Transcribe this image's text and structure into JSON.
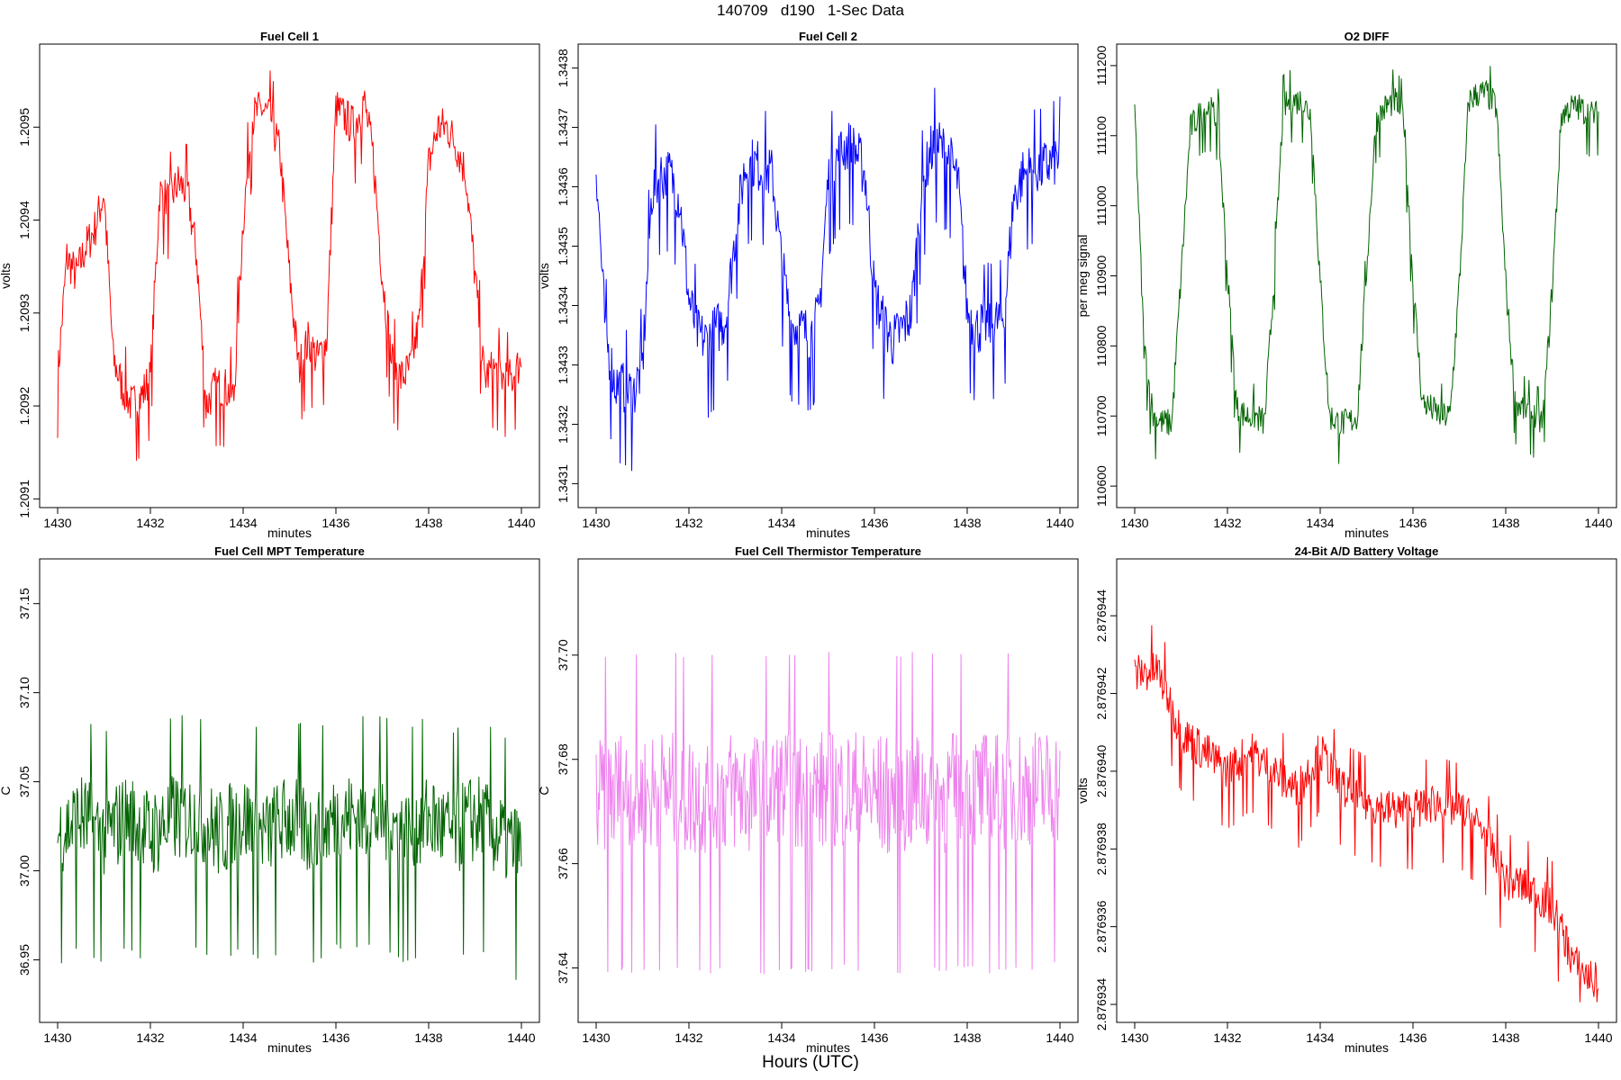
{
  "figure": {
    "suptitle": "140709   d190   1-Sec Data",
    "footer": "Hours (UTC)"
  },
  "chart_data": [
    {
      "type": "line",
      "title": "Fuel Cell 1",
      "xlabel": "minutes",
      "ylabel": "volts",
      "color": "#ff0000",
      "xlim": [
        1430,
        1440
      ],
      "ylim": [
        1.20911,
        1.20957
      ],
      "xticks": [
        1430,
        1432,
        1434,
        1436,
        1438,
        1440
      ],
      "yticks": [
        "1.2091",
        "1.2092",
        "1.2093",
        "1.2094",
        "1.2095"
      ],
      "ytick_values": [
        1.2091,
        1.2092,
        1.2093,
        1.2094,
        1.2095
      ],
      "series": [
        {
          "x": [
            1430.0,
            1430.2,
            1430.4,
            1430.6,
            1430.8,
            1431.0,
            1431.2,
            1431.4,
            1431.6,
            1431.8,
            1432.0,
            1432.2,
            1432.4,
            1432.6,
            1432.8,
            1433.0,
            1433.2,
            1433.4,
            1433.6,
            1433.8,
            1434.0,
            1434.2,
            1434.4,
            1434.6,
            1434.8,
            1435.0,
            1435.2,
            1435.4,
            1435.6,
            1435.8,
            1436.0,
            1436.2,
            1436.4,
            1436.6,
            1436.8,
            1437.0,
            1437.2,
            1437.4,
            1437.6,
            1437.8,
            1438.0,
            1438.2,
            1438.4,
            1438.6,
            1438.8,
            1439.0,
            1439.2,
            1439.4,
            1439.6,
            1439.8,
            1440.0
          ],
          "y": [
            1.20923,
            1.20936,
            1.20934,
            1.20937,
            1.20939,
            1.20943,
            1.20925,
            1.20922,
            1.2092,
            1.20921,
            1.20923,
            1.20943,
            1.20942,
            1.20944,
            1.20943,
            1.20936,
            1.2092,
            1.20922,
            1.20922,
            1.20921,
            1.2094,
            1.20951,
            1.20952,
            1.20951,
            1.20947,
            1.20934,
            1.20924,
            1.20927,
            1.20925,
            1.20927,
            1.20952,
            1.20951,
            1.2095,
            1.20953,
            1.20947,
            1.20934,
            1.20925,
            1.20923,
            1.20924,
            1.20929,
            1.20946,
            1.2095,
            1.2095,
            1.20948,
            1.20945,
            1.20934,
            1.20923,
            1.20924,
            1.20923,
            1.20923,
            1.20925
          ]
        }
      ]
    },
    {
      "type": "line",
      "title": "Fuel Cell 2",
      "xlabel": "minutes",
      "ylabel": "volts",
      "color": "#0000ff",
      "xlim": [
        1430,
        1440
      ],
      "ylim": [
        1.34309,
        1.34381
      ],
      "xticks": [
        1430,
        1432,
        1434,
        1436,
        1438,
        1440
      ],
      "yticks": [
        "1.3431",
        "1.3432",
        "1.3433",
        "1.3434",
        "1.3435",
        "1.3436",
        "1.3437",
        "1.3438"
      ],
      "ytick_values": [
        1.3431,
        1.3432,
        1.3433,
        1.3434,
        1.3435,
        1.3436,
        1.3437,
        1.3438
      ],
      "series": [
        {
          "x": [
            1430.0,
            1430.2,
            1430.4,
            1430.6,
            1430.8,
            1431.0,
            1431.2,
            1431.4,
            1431.6,
            1431.8,
            1432.0,
            1432.2,
            1432.4,
            1432.6,
            1432.8,
            1433.0,
            1433.2,
            1433.4,
            1433.6,
            1433.8,
            1434.0,
            1434.2,
            1434.4,
            1434.6,
            1434.8,
            1435.0,
            1435.2,
            1435.4,
            1435.6,
            1435.8,
            1436.0,
            1436.2,
            1436.4,
            1436.6,
            1436.8,
            1437.0,
            1437.2,
            1437.4,
            1437.6,
            1437.8,
            1438.0,
            1438.2,
            1438.4,
            1438.6,
            1438.8,
            1439.0,
            1439.2,
            1439.4,
            1439.6,
            1439.8,
            1440.0
          ],
          "y": [
            1.34364,
            1.34335,
            1.34327,
            1.34326,
            1.34325,
            1.3433,
            1.34359,
            1.34362,
            1.34362,
            1.34358,
            1.34341,
            1.34335,
            1.34334,
            1.34336,
            1.34338,
            1.34352,
            1.34363,
            1.34364,
            1.34363,
            1.34362,
            1.34347,
            1.34337,
            1.34336,
            1.34335,
            1.34338,
            1.34361,
            1.34365,
            1.34367,
            1.34366,
            1.34362,
            1.34342,
            1.34337,
            1.34334,
            1.34336,
            1.34339,
            1.34358,
            1.34366,
            1.34367,
            1.34365,
            1.34361,
            1.34339,
            1.34336,
            1.34337,
            1.34337,
            1.34338,
            1.34358,
            1.34362,
            1.34363,
            1.34363,
            1.34364,
            1.34365
          ]
        }
      ]
    },
    {
      "type": "line",
      "title": "O2 DIFF",
      "xlabel": "minutes",
      "ylabel": "per meg signal",
      "color": "#006400",
      "xlim": [
        1430,
        1440
      ],
      "ylim": [
        110595,
        111205
      ],
      "xticks": [
        1430,
        1432,
        1434,
        1436,
        1438,
        1440
      ],
      "yticks": [
        "110600",
        "110700",
        "110800",
        "110900",
        "111000",
        "111100",
        "111200"
      ],
      "ytick_values": [
        110600,
        110700,
        110800,
        110900,
        111000,
        111100,
        111200
      ],
      "series": [
        {
          "x": [
            1430.0,
            1430.2,
            1430.4,
            1430.6,
            1430.8,
            1431.0,
            1431.2,
            1431.4,
            1431.6,
            1431.8,
            1432.0,
            1432.2,
            1432.4,
            1432.6,
            1432.8,
            1433.0,
            1433.2,
            1433.4,
            1433.6,
            1433.8,
            1434.0,
            1434.2,
            1434.4,
            1434.6,
            1434.8,
            1435.0,
            1435.2,
            1435.4,
            1435.6,
            1435.8,
            1436.0,
            1436.2,
            1436.4,
            1436.6,
            1436.8,
            1437.0,
            1437.2,
            1437.4,
            1437.6,
            1437.8,
            1438.0,
            1438.2,
            1438.4,
            1438.6,
            1438.8,
            1439.0,
            1439.2,
            1439.4,
            1439.6,
            1439.8,
            1440.0
          ],
          "y": [
            111140,
            110800,
            110700,
            110690,
            110690,
            110900,
            111110,
            111130,
            111140,
            111120,
            110900,
            110710,
            110700,
            110700,
            110690,
            110890,
            111140,
            111150,
            111150,
            111130,
            110890,
            110700,
            110690,
            110690,
            110700,
            110910,
            111120,
            111140,
            111150,
            111130,
            110890,
            110720,
            110710,
            110700,
            110700,
            110890,
            111150,
            111160,
            111160,
            111140,
            110890,
            110720,
            110710,
            110700,
            110690,
            110880,
            111130,
            111140,
            111140,
            111130,
            111130
          ]
        }
      ]
    },
    {
      "type": "line",
      "title": "Fuel Cell MPT Temperature",
      "xlabel": "minutes",
      "ylabel": "C",
      "color": "#006400",
      "xlim": [
        1430,
        1440
      ],
      "ylim": [
        36.925,
        37.165
      ],
      "xticks": [
        1430,
        1432,
        1434,
        1436,
        1438,
        1440
      ],
      "yticks": [
        "36.95",
        "37.00",
        "37.05",
        "37.10",
        "37.15"
      ],
      "ytick_values": [
        36.95,
        37.0,
        37.05,
        37.1,
        37.15
      ],
      "series": [
        {
          "x": [
            1430.0,
            1430.5,
            1431.0,
            1431.5,
            1432.0,
            1432.5,
            1433.0,
            1433.5,
            1434.0,
            1434.5,
            1435.0,
            1435.5,
            1436.0,
            1436.5,
            1437.0,
            1437.5,
            1438.0,
            1438.5,
            1439.0,
            1439.5,
            1440.0
          ],
          "y": [
            37.02,
            37.03,
            37.02,
            37.03,
            37.02,
            37.03,
            37.03,
            37.02,
            37.03,
            37.02,
            37.03,
            37.02,
            37.03,
            37.03,
            37.03,
            37.02,
            37.03,
            37.02,
            37.03,
            37.02,
            37.01
          ]
        }
      ]
    },
    {
      "type": "line",
      "title": "Fuel Cell Thermistor Temperature",
      "xlabel": "minutes",
      "ylabel": "C",
      "color": "#ee82ee",
      "xlim": [
        1430,
        1440
      ],
      "ylim": [
        37.633,
        37.715
      ],
      "xticks": [
        1430,
        1432,
        1434,
        1436,
        1438,
        1440
      ],
      "yticks": [
        "37.64",
        "37.66",
        "37.68",
        "37.70"
      ],
      "ytick_values": [
        37.64,
        37.66,
        37.68,
        37.7
      ],
      "series": [
        {
          "x": [
            1430.0,
            1430.5,
            1431.0,
            1431.5,
            1432.0,
            1432.5,
            1433.0,
            1433.5,
            1434.0,
            1434.5,
            1435.0,
            1435.5,
            1436.0,
            1436.5,
            1437.0,
            1437.5,
            1438.0,
            1438.5,
            1439.0,
            1439.5,
            1440.0
          ],
          "y": [
            37.672,
            37.674,
            37.673,
            37.674,
            37.673,
            37.673,
            37.674,
            37.673,
            37.674,
            37.673,
            37.674,
            37.674,
            37.673,
            37.673,
            37.674,
            37.673,
            37.674,
            37.673,
            37.674,
            37.674,
            37.675
          ]
        }
      ]
    },
    {
      "type": "line",
      "title": "24-Bit A/D Battery Voltage",
      "xlabel": "",
      "ylabel": "volts",
      "color": "#ff0000",
      "xlim": [
        1430,
        1440
      ],
      "ylim": [
        2.876934,
        2.876945
      ],
      "xticks": [
        1430,
        1432,
        1434,
        1436,
        1438,
        1440
      ],
      "yticks": [
        "2.876934",
        "2.876936",
        "2.876938",
        "2.876940",
        "2.876942",
        "2.876944"
      ],
      "ytick_values": [
        2.876934,
        2.876936,
        2.876938,
        2.87694,
        2.876942,
        2.876944
      ],
      "series": [
        {
          "x": [
            1430.0,
            1430.5,
            1431.0,
            1431.5,
            1432.0,
            1432.5,
            1433.0,
            1433.5,
            1434.0,
            1434.5,
            1435.0,
            1435.5,
            1436.0,
            1436.5,
            1437.0,
            1437.5,
            1438.0,
            1438.5,
            1439.0,
            1439.5,
            1440.0
          ],
          "y": [
            2.8769425,
            2.8769426,
            2.876941,
            2.8769405,
            2.87694,
            2.8769405,
            2.87694,
            2.8769395,
            2.8769405,
            2.8769395,
            2.8769392,
            2.876939,
            2.876939,
            2.8769392,
            2.876939,
            2.8769385,
            2.8769372,
            2.876937,
            2.8769365,
            2.876935,
            2.8769345
          ]
        }
      ]
    }
  ]
}
